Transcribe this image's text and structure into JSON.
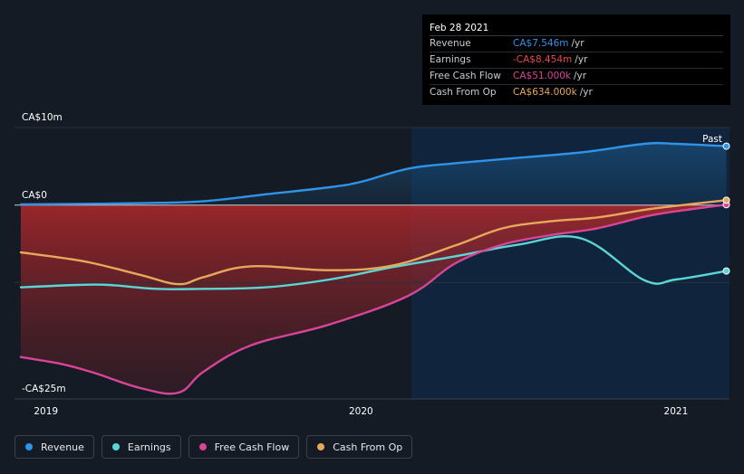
{
  "tooltip": {
    "date": "Feb 28 2021",
    "rows": [
      {
        "label": "Revenue",
        "value": "CA$7.546m",
        "unit": "/yr",
        "color": "#2f94e8"
      },
      {
        "label": "Earnings",
        "value": "-CA$8.454m",
        "unit": "/yr",
        "color": "#e8484a"
      },
      {
        "label": "Free Cash Flow",
        "value": "CA$51.000k",
        "unit": "/yr",
        "color": "#d84597"
      },
      {
        "label": "Cash From Op",
        "value": "CA$634.000k",
        "unit": "/yr",
        "color": "#e8a85c"
      }
    ]
  },
  "legend": [
    {
      "label": "Revenue",
      "color": "#2f94e8",
      "icon": "revenue-dot-icon"
    },
    {
      "label": "Earnings",
      "color": "#5bd6d6",
      "icon": "earnings-dot-icon"
    },
    {
      "label": "Free Cash Flow",
      "color": "#d84597",
      "icon": "free-cash-flow-dot-icon"
    },
    {
      "label": "Cash From Op",
      "color": "#e8a85c",
      "icon": "cash-from-op-dot-icon"
    }
  ],
  "chart_data": {
    "type": "line",
    "past_label": "Past",
    "y_tick_labels": {
      "top": "CA$10m",
      "zero": "CA$0",
      "bottom": "-CA$25m"
    },
    "ylim": [
      -25,
      10
    ],
    "xlim": [
      2018.9,
      2021.17
    ],
    "x_ticks": [
      {
        "label": "2019",
        "value": 2019.0
      },
      {
        "label": "2020",
        "value": 2020.0
      },
      {
        "label": "2021",
        "value": 2021.0
      }
    ],
    "highlight_start": 2020.16,
    "grid": true,
    "series": [
      {
        "name": "Revenue",
        "color": "#2f94e8",
        "x": [
          2018.92,
          2019.1,
          2019.3,
          2019.5,
          2019.7,
          2019.9,
          2020.0,
          2020.15,
          2020.3,
          2020.5,
          2020.7,
          2020.9,
          2021.0,
          2021.16
        ],
        "y": [
          0.1,
          0.15,
          0.25,
          0.5,
          1.4,
          2.3,
          3.0,
          4.7,
          5.4,
          6.1,
          6.8,
          7.9,
          7.9,
          7.6
        ]
      },
      {
        "name": "Earnings",
        "color": "#5bd6d6",
        "x": [
          2018.92,
          2019.1,
          2019.2,
          2019.35,
          2019.5,
          2019.7,
          2019.9,
          2020.1,
          2020.3,
          2020.5,
          2020.7,
          2020.9,
          2021.0,
          2021.16
        ],
        "y": [
          -10.6,
          -10.3,
          -10.3,
          -10.8,
          -10.8,
          -10.6,
          -9.6,
          -8.0,
          -6.6,
          -5.1,
          -4.3,
          -9.7,
          -9.6,
          -8.5
        ]
      },
      {
        "name": "Free Cash Flow",
        "color": "#d84597",
        "x": [
          2018.92,
          2019.05,
          2019.15,
          2019.3,
          2019.42,
          2019.5,
          2019.65,
          2019.9,
          2020.15,
          2020.3,
          2020.45,
          2020.6,
          2020.75,
          2020.9,
          2021.0,
          2021.16
        ],
        "y": [
          -19.6,
          -20.5,
          -21.6,
          -23.6,
          -24.2,
          -21.5,
          -18.1,
          -15.4,
          -11.7,
          -7.5,
          -5.1,
          -3.9,
          -3.0,
          -1.5,
          -0.8,
          0.05
        ]
      },
      {
        "name": "Cash From Op",
        "color": "#e8a85c",
        "x": [
          2018.92,
          2019.05,
          2019.15,
          2019.3,
          2019.42,
          2019.5,
          2019.65,
          2019.9,
          2020.1,
          2020.3,
          2020.45,
          2020.6,
          2020.75,
          2020.9,
          2021.0,
          2021.16
        ],
        "y": [
          -6.1,
          -6.8,
          -7.5,
          -9.0,
          -10.2,
          -9.3,
          -7.9,
          -8.4,
          -7.8,
          -5.2,
          -3.0,
          -2.1,
          -1.6,
          -0.6,
          -0.1,
          0.63
        ]
      }
    ]
  }
}
